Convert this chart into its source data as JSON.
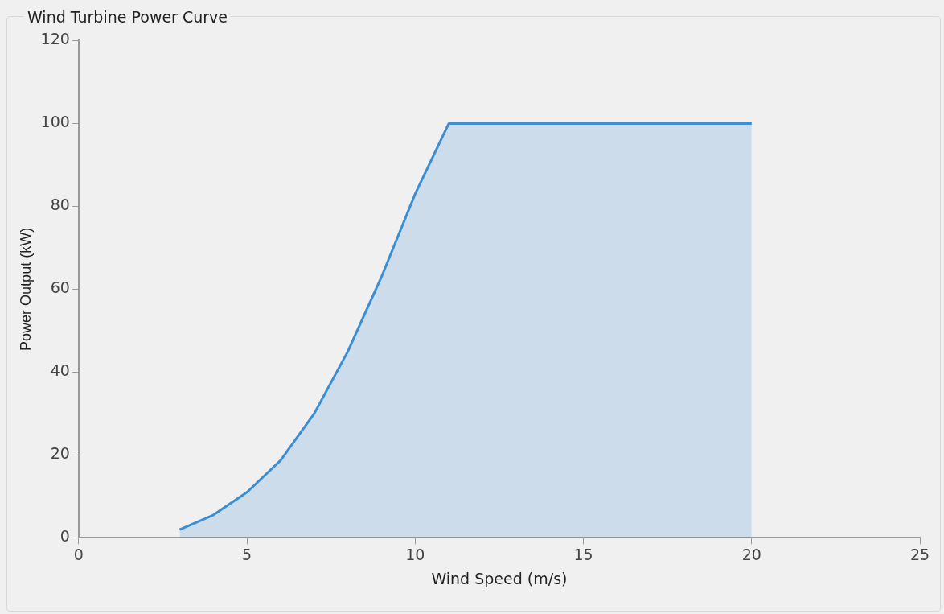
{
  "chart_data": {
    "type": "area",
    "title": "Wind Turbine Power Curve",
    "xlabel": "Wind Speed (m/s)",
    "ylabel": "Power Output (kW)",
    "x": [
      3,
      4,
      5,
      6,
      7,
      8,
      9,
      10,
      11,
      20
    ],
    "series": [
      {
        "color": "#3b8ed6",
        "values": [
          2,
          5.5,
          11,
          18.7,
          30,
          45,
          63,
          83,
          100,
          100
        ]
      }
    ],
    "xlim": [
      0,
      25
    ],
    "xticks": [
      0,
      5,
      10,
      15,
      20,
      25
    ],
    "ylim": [
      0,
      120
    ],
    "yticks": [
      0,
      20,
      40,
      60,
      80,
      100,
      120
    ],
    "grid": false,
    "legend": false,
    "marker": "none",
    "line_style": "solid"
  }
}
